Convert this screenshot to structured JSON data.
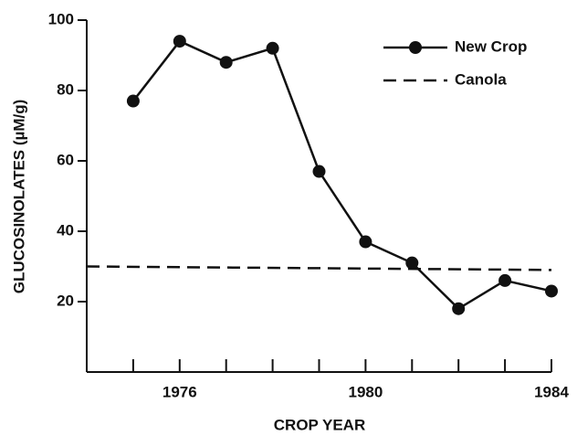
{
  "chart_data": {
    "type": "line",
    "y_label": "GLUCOSINOLATES (µM/g)",
    "x_label": "CROP YEAR",
    "series": [
      {
        "name": "New Crop",
        "color": "#111111",
        "style": "solid",
        "marker": "circle",
        "x": [
          1975,
          1976,
          1977,
          1978,
          1979,
          1980,
          1981,
          1982,
          1983,
          1984
        ],
        "values": [
          77,
          94,
          88,
          92,
          57,
          37,
          31,
          18,
          26,
          23
        ]
      },
      {
        "name": "Canola",
        "color": "#111111",
        "style": "dashed",
        "x": [
          1974,
          1984
        ],
        "values": [
          30,
          29
        ]
      }
    ],
    "xlim": [
      1974,
      1984
    ],
    "xticks": [
      1976,
      1980,
      1984
    ],
    "xminor_ticks": [
      1975,
      1977,
      1978,
      1979,
      1981,
      1982,
      1983
    ],
    "ylim": [
      0,
      100
    ],
    "yticks": [
      20,
      40,
      60,
      80,
      100
    ],
    "legend": "upper right",
    "grid": false
  }
}
